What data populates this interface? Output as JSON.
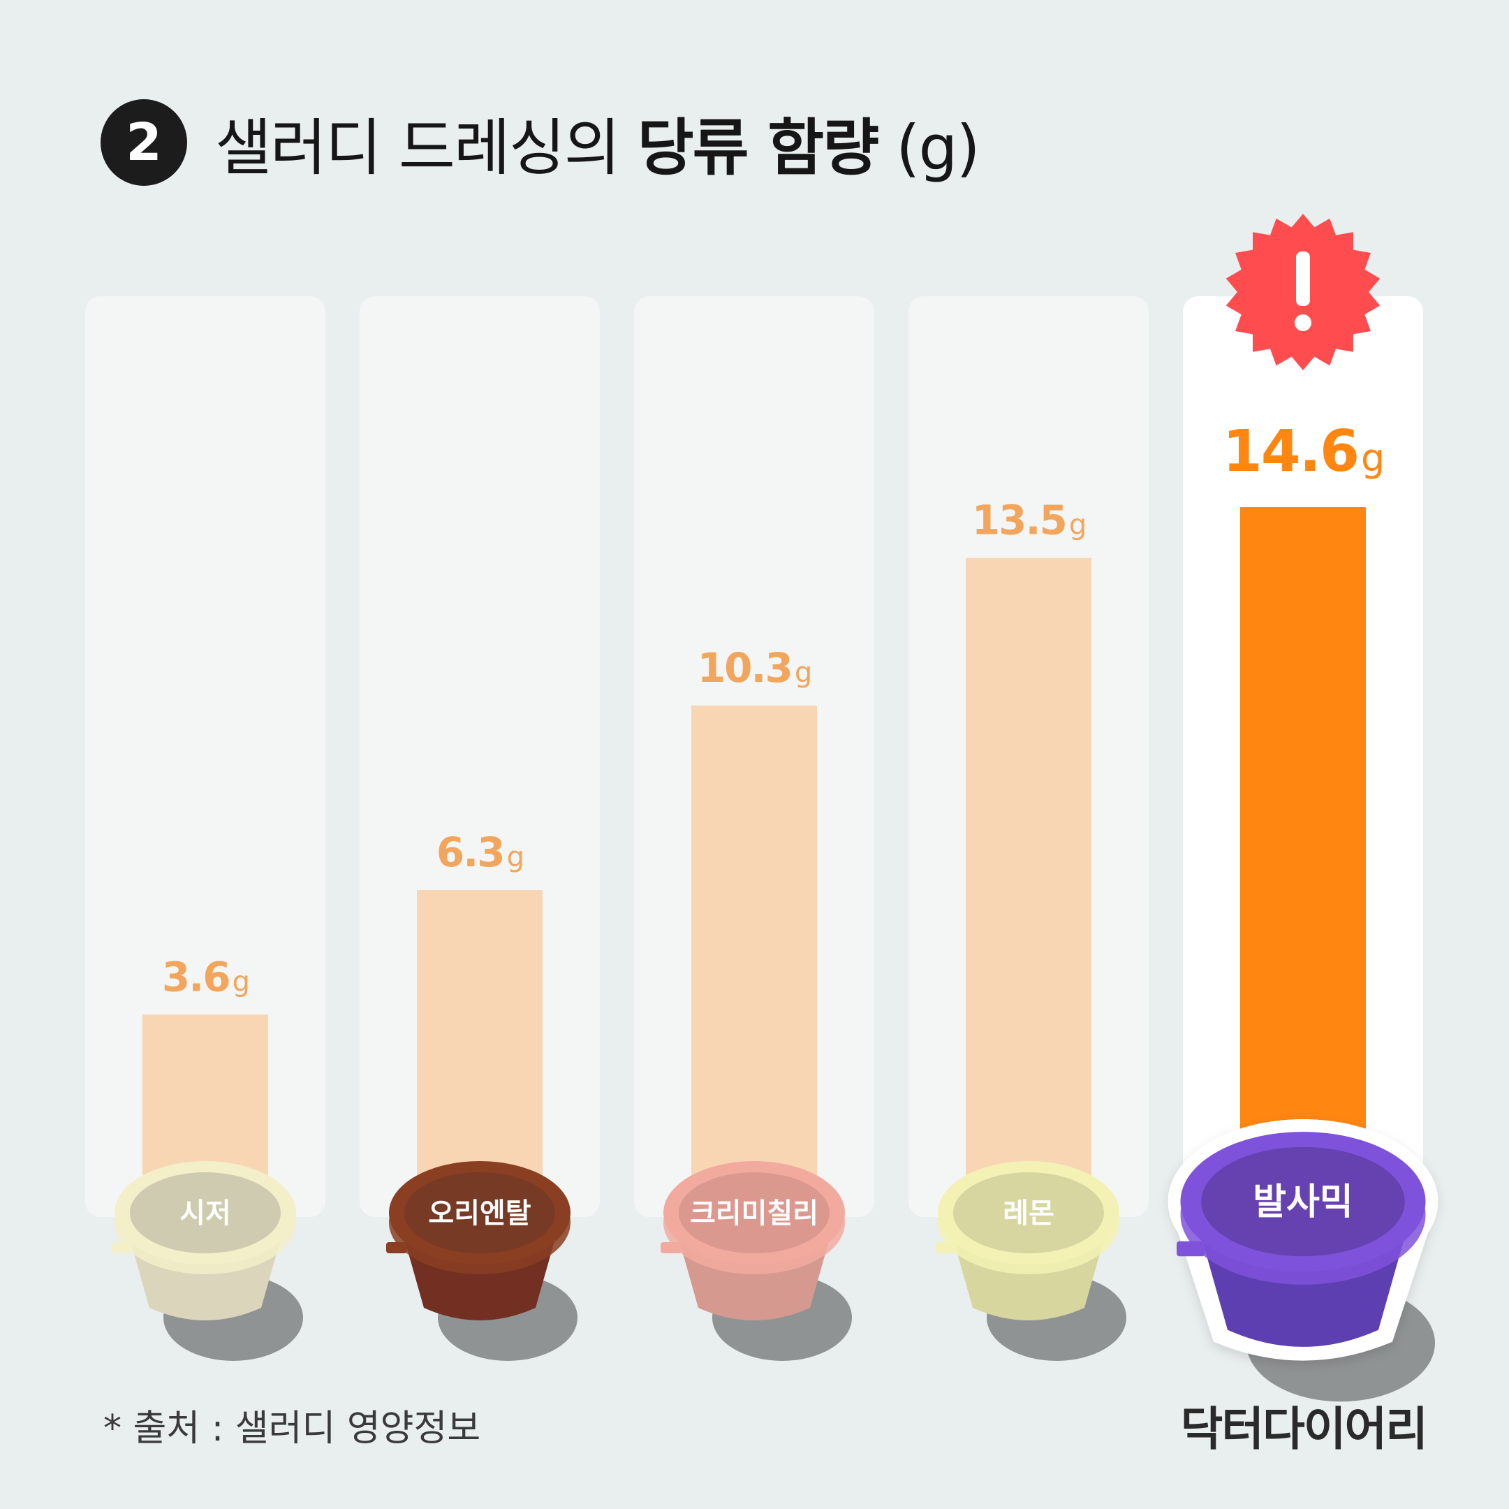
{
  "header": {
    "number": "2",
    "title_regular": "샐러디 드레싱의",
    "title_bold": "당류 함량",
    "title_unit": "(g)"
  },
  "chart_data": {
    "type": "bar",
    "categories": [
      "시저",
      "오리엔탈",
      "크리미칠리",
      "레몬",
      "발사믹"
    ],
    "values": [
      3.6,
      6.3,
      10.3,
      13.5,
      14.6
    ],
    "unit": "g",
    "ylim": [
      0,
      14.6
    ],
    "grid": false,
    "legend": "none",
    "highlight_index": 4,
    "colors": {
      "bar": "#f8d6b4",
      "bar_highlight": "#ff8611",
      "label": "#f2a55c",
      "label_highlight": "#ff8611",
      "panel": "#f4f6f6",
      "panel_highlight": "#ffffff",
      "alert": "#ff4d4f"
    },
    "cups": [
      {
        "rim": "#f2efc9",
        "lid": "#cfcbb1",
        "body": "#dbd5bb"
      },
      {
        "rim": "#8a3e22",
        "lid": "#773a25",
        "body": "#722f22"
      },
      {
        "rim": "#f2aa9f",
        "lid": "#db988f",
        "body": "#d6998f"
      },
      {
        "rim": "#f3f2b4",
        "lid": "#d7d6a0",
        "body": "#d6d69e"
      },
      {
        "rim": "#7f52db",
        "lid": "#6542b0",
        "body": "#5e3fb2"
      }
    ]
  },
  "footer": {
    "source": "* 출처 : 샐러디 영양정보",
    "brand": "닥터다이어리"
  }
}
